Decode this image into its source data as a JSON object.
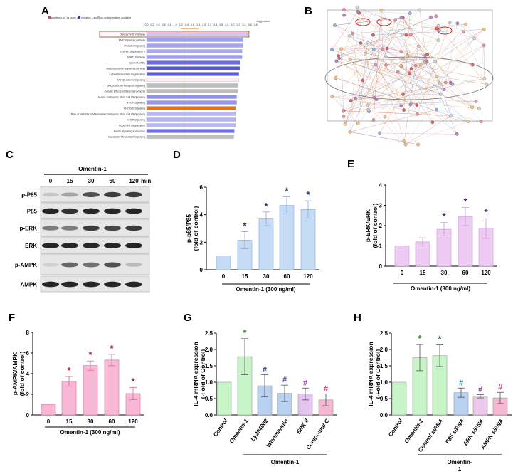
{
  "panels": {
    "A": "A",
    "B": "B",
    "C": "C",
    "D": "D",
    "E": "E",
    "F": "F",
    "G": "G",
    "H": "H"
  },
  "panel_a": {
    "legend": [
      "positive z-score",
      "z-score = 0",
      "negative z-score",
      "no activity pattern available"
    ],
    "axis_title": "-log(p-value)",
    "ticks": [
      "0.0",
      "0.2",
      "0.4",
      "0.6",
      "0.8",
      "1.0",
      "1.2",
      "1.4",
      "1.6",
      "1.8",
      "2.0",
      "2.2",
      "2.4",
      "2.6",
      "2.8",
      "3.0",
      "3.2",
      "3.4",
      "3.6",
      "3.8"
    ],
    "threshold_label": "Threshold",
    "pathways": [
      {
        "name": "Osteoarthritis Pathway",
        "value": 3.52,
        "color": "#cfc8f2",
        "highlighted": true
      },
      {
        "name": "BMP signaling pathway",
        "value": 3.36,
        "color": "#a0a0f2"
      },
      {
        "name": "Prolactin Signaling",
        "value": 3.36,
        "color": "#a4a4f2"
      },
      {
        "name": "Ethanol Degradation II",
        "value": 3.33,
        "color": "#aaaaf2"
      },
      {
        "name": "STAT3 Pathway",
        "value": 3.33,
        "color": "#9c9cf0"
      },
      {
        "name": "Sperm Motility",
        "value": 3.27,
        "color": "#6a6ae8"
      },
      {
        "name": "Adrenomedullin signaling pathway",
        "value": 3.25,
        "color": "#5555e0"
      },
      {
        "name": "3-phosphoinositide Degradation",
        "value": 3.22,
        "color": "#5c5ce4"
      },
      {
        "name": "WNT/β-catenin Signaling",
        "value": 3.22,
        "color": "#fbeeee"
      },
      {
        "name": "Glucocorticoid Receptor Signaling",
        "value": 3.18,
        "color": "#bdbdbd"
      },
      {
        "name": "Cellular Effects of Sildenafil (Viagra)",
        "value": 3.18,
        "color": "#bdbdbd"
      },
      {
        "name": "Mouse Embryonic Stem Cell Pluripotency",
        "value": 3.14,
        "color": "#8f8ff0"
      },
      {
        "name": "VEGF Signaling",
        "value": 3.14,
        "color": "#9797f0"
      },
      {
        "name": "RHOGDI Signaling",
        "value": 3.1,
        "color": "#e8720c"
      },
      {
        "name": "Role of NANOG in Mammalian Embryonic Stem Cell Pluripotency",
        "value": 3.1,
        "color": "#b8b8f4"
      },
      {
        "name": "mTOR Signaling",
        "value": 3.1,
        "color": "#b4b4f4"
      },
      {
        "name": "Dopamine Degradation",
        "value": 3.1,
        "color": "#b8b8f4"
      },
      {
        "name": "Reelin Signaling in Neurons",
        "value": 3.06,
        "color": "#7070ea"
      },
      {
        "name": "Xenobiotic Metabolism Signaling",
        "value": 3.04,
        "color": "#bdbdbd"
      }
    ]
  },
  "panel_c": {
    "treatment": "Omentin-1",
    "times": [
      "0",
      "15",
      "30",
      "60",
      "120"
    ],
    "time_unit": "min",
    "rows": [
      "p-P85",
      "P85",
      "p-ERK",
      "ERK",
      "p-AMPK",
      "AMPK"
    ]
  },
  "chart_data": [
    {
      "panel": "D",
      "type": "bar",
      "categories": [
        "0",
        "15",
        "30",
        "60",
        "120"
      ],
      "values": [
        1,
        2.15,
        3.7,
        4.68,
        4.38
      ],
      "errors": [
        0,
        0.62,
        0.5,
        0.62,
        0.63
      ],
      "significance": [
        "",
        "*",
        "*",
        "*",
        "*"
      ],
      "ylabel": [
        "p-p85/P85",
        "(fold of control)"
      ],
      "ylim": [
        0,
        6
      ],
      "yticks": [
        "0",
        "2",
        "4",
        "6"
      ],
      "xgroup_label": "Omentin-1 (300 ng/ml)",
      "bar_color": "#c6dcf5",
      "edge_color": "#8aa9d6",
      "mark_color": "#2b2a6e"
    },
    {
      "panel": "E",
      "type": "bar",
      "categories": [
        "0",
        "15",
        "30",
        "60",
        "120"
      ],
      "values": [
        1,
        1.2,
        1.82,
        2.45,
        1.87
      ],
      "errors": [
        0,
        0.2,
        0.33,
        0.45,
        0.5
      ],
      "significance": [
        "",
        "",
        "*",
        "*",
        "*"
      ],
      "ylabel": [
        "p-ERK/ERK",
        "(fold of control)"
      ],
      "ylim": [
        0,
        4
      ],
      "yticks": [
        "0",
        "1",
        "2",
        "3",
        "4"
      ],
      "xgroup_label": "Omentin-1 (300 ng/ml)",
      "bar_color": "#eecbf3",
      "edge_color": "#c59ad0",
      "mark_color": "#4a2660"
    },
    {
      "panel": "F",
      "type": "bar",
      "categories": [
        "0",
        "15",
        "30",
        "60",
        "120"
      ],
      "values": [
        1,
        3.25,
        4.78,
        5.32,
        2.07
      ],
      "errors": [
        0,
        0.47,
        0.45,
        0.55,
        0.6
      ],
      "significance": [
        "",
        "*",
        "*",
        "*",
        "*"
      ],
      "ylabel": [
        "p-AMPK/AMPK",
        "(fold of control)"
      ],
      "ylim": [
        0,
        8
      ],
      "yticks": [
        "0",
        "2",
        "4",
        "6",
        "8"
      ],
      "xgroup_label": "Omentin-1 (300 ng/ml)",
      "bar_color": "#f9b9d6",
      "edge_color": "#d06c98",
      "mark_color": "#9b1d4f"
    },
    {
      "panel": "G",
      "type": "bar",
      "categories": [
        "Control",
        "Omentin-1",
        "Ly294002",
        "Wortmannin",
        "ERK II",
        "Compound C"
      ],
      "values": [
        1,
        1.78,
        0.89,
        0.66,
        0.64,
        0.46
      ],
      "errors": [
        0,
        0.55,
        0.34,
        0.25,
        0.18,
        0.18
      ],
      "significance": [
        "",
        "*",
        "#",
        "#",
        "#",
        "#"
      ],
      "ylabel": [
        "IL-4 mRNA expression",
        "(-Fold of Control)"
      ],
      "ylim": [
        0,
        2.5
      ],
      "yticks": [
        "0.0",
        "0.5",
        "1.0",
        "1.5",
        "2.0",
        "2.5"
      ],
      "xgroup_label": "Omentin-1",
      "bar_colors": [
        "#c8f5c8",
        "#c8f5c8",
        "#b9d2f2",
        "#b9d2f2",
        "#e4c4f0",
        "#f7b6d2"
      ],
      "mark_colors": [
        "",
        "#2c7a2c",
        "#3b46b0",
        "#3b46b0",
        "#a040b0",
        "#d03070"
      ]
    },
    {
      "panel": "H",
      "type": "bar",
      "categories": [
        "Control",
        "Omentin-1",
        "Control siRNA",
        "P85 siRNA",
        "ERK siRNA",
        "AMPK siRNA"
      ],
      "values": [
        1,
        1.75,
        1.81,
        0.68,
        0.57,
        0.52
      ],
      "errors": [
        0,
        0.4,
        0.33,
        0.14,
        0.05,
        0.17
      ],
      "significance": [
        "",
        "*",
        "*",
        "#",
        "#",
        "#"
      ],
      "ylabel": [
        "IL-4 mRNA expression",
        "(-Fold of Control)"
      ],
      "ylim": [
        0,
        2.5
      ],
      "yticks": [
        "0.0",
        "0.5",
        "1.0",
        "1.5",
        "2.0",
        "2.5"
      ],
      "xgroup_label": "Omentin-\n1",
      "bar_colors": [
        "#c8f5c8",
        "#c8f5c8",
        "#c8f5c8",
        "#b9d2f2",
        "#ecc8ec",
        "#f7b6d2"
      ],
      "mark_colors": [
        "",
        "#2c7a2c",
        "#2c7a2c",
        "#2d8a8a",
        "#a040b0",
        "#c03080"
      ]
    }
  ]
}
